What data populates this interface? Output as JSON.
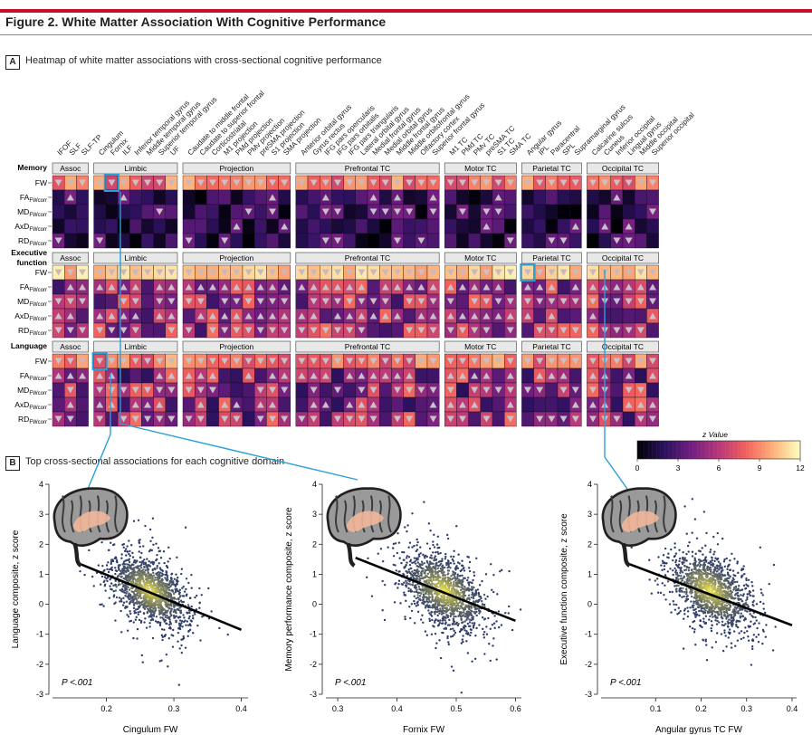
{
  "figure": {
    "title": "Figure 2. White Matter Association With Cognitive Performance",
    "panel_a": {
      "letter": "A",
      "caption": "Heatmap of white matter associations with cross-sectional cognitive performance"
    },
    "panel_b": {
      "letter": "B",
      "caption": "Top cross-sectional associations for each cognitive domain"
    }
  },
  "colors": {
    "accent": "#c8102e",
    "scatter_dense": "#f1e64a",
    "scatter_sparse": "#2e3c6b",
    "fit_line": "#000000"
  },
  "chart_data": [
    {
      "type": "heatmap",
      "title": "Heatmap of white matter associations with cross-sectional cognitive performance",
      "columns": [
        "IFOF",
        "SLF",
        "SLF-TP",
        "Cingulum",
        "Fornix",
        "ILF",
        "Inferior temporal gyrus",
        "Middle temporal gyrus",
        "Superior temporal gyrus",
        "UF",
        "Caudate to middle frontal",
        "Caudate to superior frontal",
        "Corticostriatal",
        "M1 projection",
        "PMd projection",
        "PMv projection",
        "preSMA projection",
        "S1 projection",
        "SMA projection",
        "Anterior orbital gyrus",
        "Gyrus rectus",
        "IFG pars opercularis",
        "IFG pars orbitalis",
        "IFG pars triangularis",
        "Lateral orbital gyrus",
        "Medial frontal gyrus",
        "Medial orbital gyrus",
        "Middle frontal gyrus",
        "Middle orbitofrontal gyrus",
        "Olfactory cortex",
        "Superior frontal gyrus",
        "M1 TC",
        "PMd TC",
        "PMv TC",
        "preSMA TC",
        "S1 TC",
        "SMA TC",
        "Angular gyrus",
        "IPL",
        "Paracentral",
        "SPL",
        "Supramarginal gyrus",
        "Calcarine sulcus",
        "Cuneus",
        "Inferior occipital",
        "Lingual gyrus",
        "Middle occipital",
        "Superior occipital"
      ],
      "column_groups": [
        {
          "name": "Assoc",
          "count": 3
        },
        {
          "name": "Limbic",
          "count": 7
        },
        {
          "name": "Projection",
          "count": 9
        },
        {
          "name": "Prefrontal TC",
          "count": 12
        },
        {
          "name": "Motor TC",
          "count": 6
        },
        {
          "name": "Parietal TC",
          "count": 5
        },
        {
          "name": "Occipital TC",
          "count": 6
        }
      ],
      "row_labels": [
        {
          "main": "FW",
          "sub": ""
        },
        {
          "main": "FA",
          "sub": "FWcorr"
        },
        {
          "main": "MD",
          "sub": "FWcorr"
        },
        {
          "main": "AxD",
          "sub": "FWcorr"
        },
        {
          "main": "RD",
          "sub": "FWcorr"
        }
      ],
      "domains": [
        "Memory",
        "Executive function",
        "Language"
      ],
      "colorbar": {
        "title": "z Value",
        "ticks": [
          0,
          3,
          6,
          9,
          12
        ],
        "min": 0,
        "max": 12,
        "stops": [
          "#000004",
          "#2c115f",
          "#721f81",
          "#b73779",
          "#f1605d",
          "#feb078",
          "#fcfdbf"
        ]
      },
      "highlighted_cells": [
        {
          "domain": "Memory",
          "row": "FW",
          "column": "Fornix"
        },
        {
          "domain": "Executive function",
          "row": "FW",
          "column": "Angular gyrus"
        },
        {
          "domain": "Language",
          "row": "FW",
          "column": "Cingulum"
        }
      ]
    },
    {
      "type": "scatter",
      "xlabel": "Cingulum FW",
      "ylabel": "Language composite, z score",
      "xticks": [
        0.2,
        0.3,
        0.4
      ],
      "xlim": [
        0.12,
        0.41
      ],
      "yticks": [
        -3,
        -2,
        -1,
        0,
        1,
        2,
        3,
        4
      ],
      "ylim": [
        -3,
        4
      ],
      "fit": {
        "x": [
          0.16,
          0.4
        ],
        "y": [
          1.35,
          -0.85
        ]
      },
      "cloud": {
        "cx": 0.265,
        "cy": 0.45,
        "sx": 0.028,
        "sy": 0.6,
        "rho": -0.5
      },
      "annotation": "P <.001"
    },
    {
      "type": "scatter",
      "xlabel": "Fornix FW",
      "ylabel": "Memory performance composite, z score",
      "xticks": [
        0.3,
        0.4,
        0.5,
        0.6
      ],
      "xlim": [
        0.28,
        0.61
      ],
      "yticks": [
        -3,
        -2,
        -1,
        0,
        1,
        2,
        3,
        4
      ],
      "ylim": [
        -3,
        4
      ],
      "fit": {
        "x": [
          0.33,
          0.6
        ],
        "y": [
          1.55,
          -0.55
        ]
      },
      "cloud": {
        "cx": 0.48,
        "cy": 0.45,
        "sx": 0.035,
        "sy": 0.65,
        "rho": -0.5
      },
      "annotation": "P <.001"
    },
    {
      "type": "scatter",
      "xlabel": "Angular gyrus TC FW",
      "ylabel": "Executive function composite, z score",
      "xticks": [
        0.1,
        0.2,
        0.3,
        0.4
      ],
      "xlim": [
        -0.02,
        0.41
      ],
      "yticks": [
        -3,
        -2,
        -1,
        0,
        1,
        2,
        3,
        4
      ],
      "ylim": [
        -3,
        4
      ],
      "fit": {
        "x": [
          0.04,
          0.4
        ],
        "y": [
          1.35,
          -0.7
        ]
      },
      "cloud": {
        "cx": 0.22,
        "cy": 0.45,
        "sx": 0.045,
        "sy": 0.65,
        "rho": -0.5
      },
      "annotation": "P <.001"
    }
  ]
}
